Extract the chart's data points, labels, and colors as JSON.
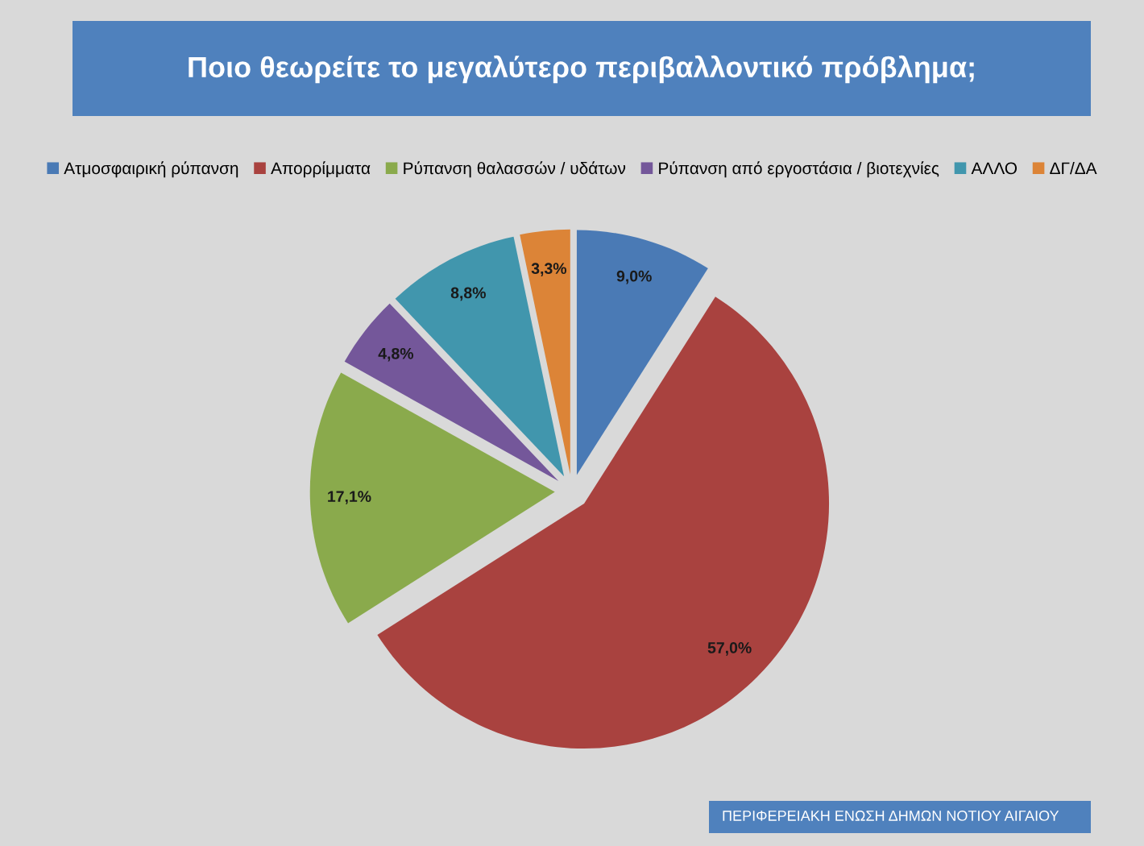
{
  "chart_data": {
    "type": "pie",
    "title": "Ποιο θεωρείτε το μεγαλύτερο περιβαλλοντικό πρόβλημα;",
    "categories": [
      "Ατμοσφαιρική ρύπανση",
      "Απορρίμματα",
      "Ρύπανση θαλασσών / υδάτων",
      "Ρύπανση από εργοστάσια / βιοτεχνίες",
      "ΑΛΛΟ",
      "ΔΓ/ΔΑ"
    ],
    "values": [
      9.0,
      57.0,
      17.1,
      4.8,
      8.8,
      3.3
    ],
    "value_labels": [
      "9,0%",
      "57,0%",
      "17,1%",
      "4,8%",
      "8,8%",
      "3,3%"
    ],
    "colors": [
      "#4a7ab5",
      "#a9423f",
      "#8aaa4c",
      "#74579a",
      "#4196ad",
      "#dc8437"
    ],
    "legend": "top",
    "annotations": [
      "ΠΕΡΙΦΕΡΕΙΑΚΗ ΕΝΩΣΗ ΔΗΜΩΝ ΝΟΤΙΟΥ ΑΙΓΑΙΟΥ"
    ]
  }
}
